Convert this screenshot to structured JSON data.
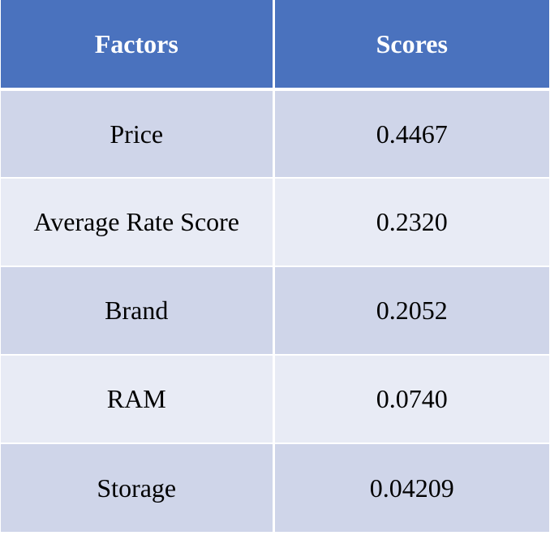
{
  "table": {
    "headers": {
      "factor": "Factors",
      "score": "Scores"
    },
    "rows": [
      {
        "factor": "Price",
        "score": "0.4467"
      },
      {
        "factor": "Average Rate Score",
        "score": "0.2320"
      },
      {
        "factor": "Brand",
        "score": "0.2052"
      },
      {
        "factor": "RAM",
        "score": "0.0740"
      },
      {
        "factor": "Storage",
        "score": "0.04209"
      }
    ]
  },
  "colors": {
    "header_bg": "#4a72be",
    "header_text": "#ffffff",
    "row_dark": "#cfd5e9",
    "row_light": "#e8ebf5"
  }
}
